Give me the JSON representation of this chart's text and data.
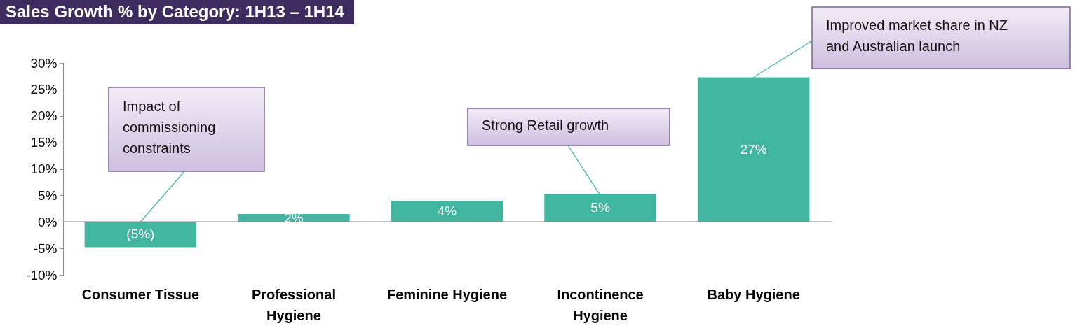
{
  "chart_data": {
    "type": "bar",
    "title": "Sales Growth % by Category: 1H13 – 1H14",
    "categories": [
      "Consumer Tissue",
      "Professional Hygiene",
      "Feminine Hygiene",
      "Incontinence Hygiene",
      "Baby Hygiene"
    ],
    "values": [
      -4.8,
      1.5,
      4.0,
      5.3,
      27.3
    ],
    "value_labels": [
      "(5%)",
      "2%",
      "4%",
      "5%",
      "27%"
    ],
    "color": "#40b5a0",
    "ylim": [
      -10,
      30
    ],
    "yticks": [
      {
        "value": -10,
        "label": "-10%"
      },
      {
        "value": -5,
        "label": "-5%"
      },
      {
        "value": 0,
        "label": "0%"
      },
      {
        "value": 5,
        "label": "5%"
      },
      {
        "value": 10,
        "label": "10%"
      },
      {
        "value": 15,
        "label": "15%"
      },
      {
        "value": 20,
        "label": "20%"
      },
      {
        "value": 25,
        "label": "25%"
      },
      {
        "value": 30,
        "label": "30%"
      }
    ],
    "annotations": [
      {
        "text": "Impact of commissioning constraints",
        "x": "Consumer Tissue",
        "y": 0
      },
      {
        "text": "Strong Retail growth",
        "x": "Incontinence Hygiene",
        "y": 5
      },
      {
        "text": "Improved market share in NZ and Australian launch",
        "x": "Baby Hygiene",
        "y": 27.3
      }
    ]
  }
}
